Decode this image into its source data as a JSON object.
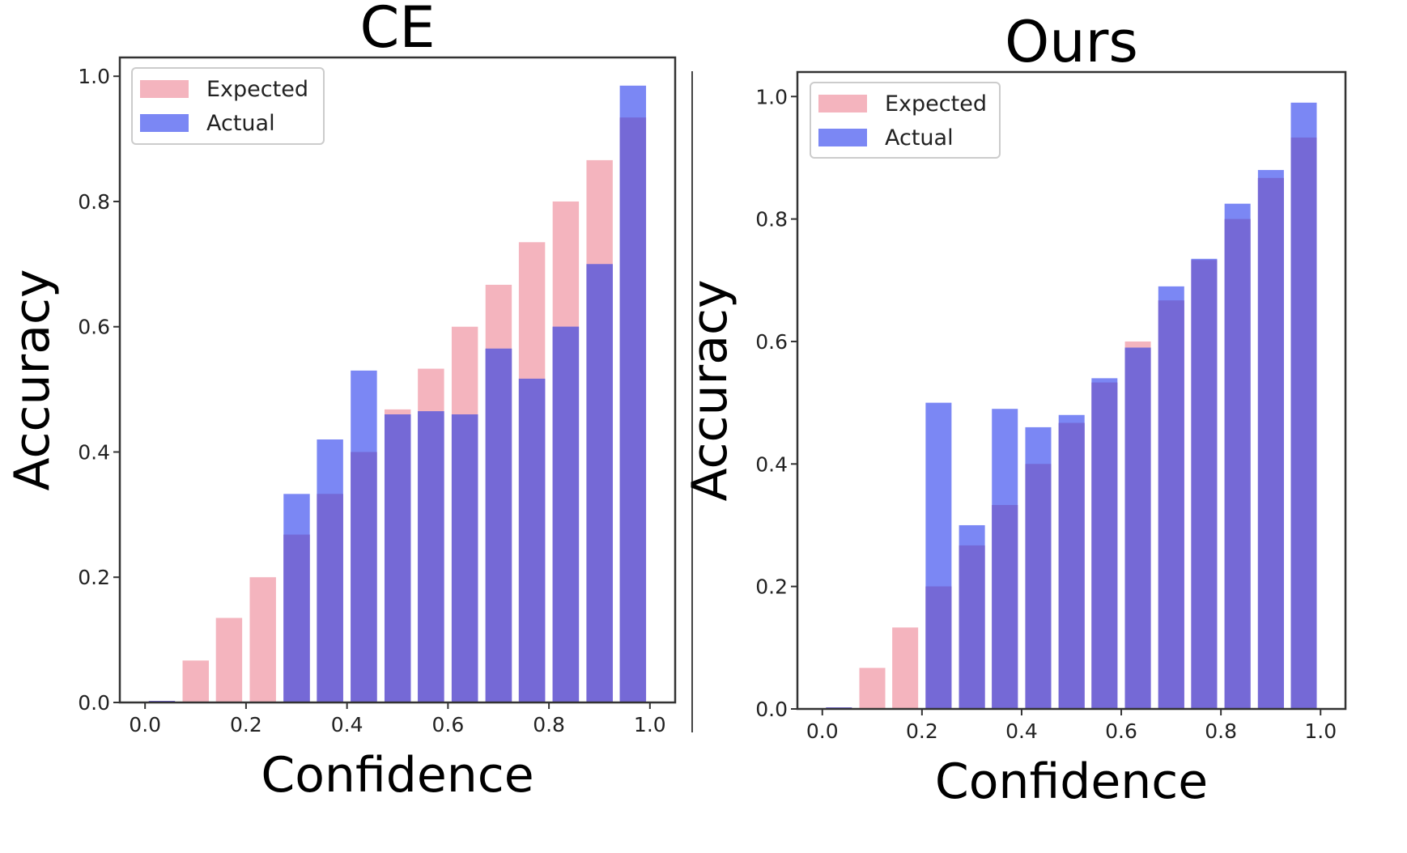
{
  "colors": {
    "expected": "#f4b4be",
    "actual": "#4f5ff0",
    "overlap": "#7569d6",
    "axis": "#333333"
  },
  "chart_data": [
    {
      "type": "bar",
      "title": "CE",
      "xlabel": "Confidence",
      "ylabel": "Accuracy",
      "xlim": [
        -0.05,
        1.05
      ],
      "ylim": [
        0,
        1.03
      ],
      "xticks": [
        "0.0",
        "0.2",
        "0.4",
        "0.6",
        "0.8",
        "1.0"
      ],
      "yticks": [
        "0.0",
        "0.2",
        "0.4",
        "0.6",
        "0.8",
        "1.0"
      ],
      "legend_position": "top-left",
      "x": [
        0.0,
        0.067,
        0.133,
        0.2,
        0.267,
        0.333,
        0.4,
        0.467,
        0.533,
        0.6,
        0.667,
        0.733,
        0.8,
        0.867,
        0.933
      ],
      "series": [
        {
          "name": "Expected",
          "values": [
            0.0,
            0.067,
            0.135,
            0.2,
            0.268,
            0.333,
            0.4,
            0.468,
            0.533,
            0.6,
            0.667,
            0.735,
            0.8,
            0.866,
            0.934
          ]
        },
        {
          "name": "Actual",
          "values": [
            0.0,
            0.0,
            0.0,
            0.0,
            0.333,
            0.42,
            0.53,
            0.46,
            0.465,
            0.46,
            0.565,
            0.517,
            0.6,
            0.7,
            0.985
          ]
        }
      ]
    },
    {
      "type": "bar",
      "title": "Ours",
      "xlabel": "Confidence",
      "ylabel": "Accuracy",
      "xlim": [
        -0.05,
        1.05
      ],
      "ylim": [
        0,
        1.04
      ],
      "xticks": [
        "0.0",
        "0.2",
        "0.4",
        "0.6",
        "0.8",
        "1.0"
      ],
      "yticks": [
        "0.0",
        "0.2",
        "0.4",
        "0.6",
        "0.8",
        "1.0"
      ],
      "legend_position": "top-left",
      "x": [
        0.0,
        0.067,
        0.133,
        0.2,
        0.267,
        0.333,
        0.4,
        0.467,
        0.533,
        0.6,
        0.667,
        0.733,
        0.8,
        0.867,
        0.933
      ],
      "series": [
        {
          "name": "Expected",
          "values": [
            0.0,
            0.067,
            0.133,
            0.2,
            0.267,
            0.333,
            0.4,
            0.467,
            0.533,
            0.6,
            0.667,
            0.733,
            0.8,
            0.867,
            0.933
          ]
        },
        {
          "name": "Actual",
          "values": [
            0.0,
            0.0,
            0.0,
            0.5,
            0.3,
            0.49,
            0.46,
            0.48,
            0.54,
            0.59,
            0.69,
            0.735,
            0.825,
            0.88,
            0.99
          ]
        }
      ]
    }
  ]
}
